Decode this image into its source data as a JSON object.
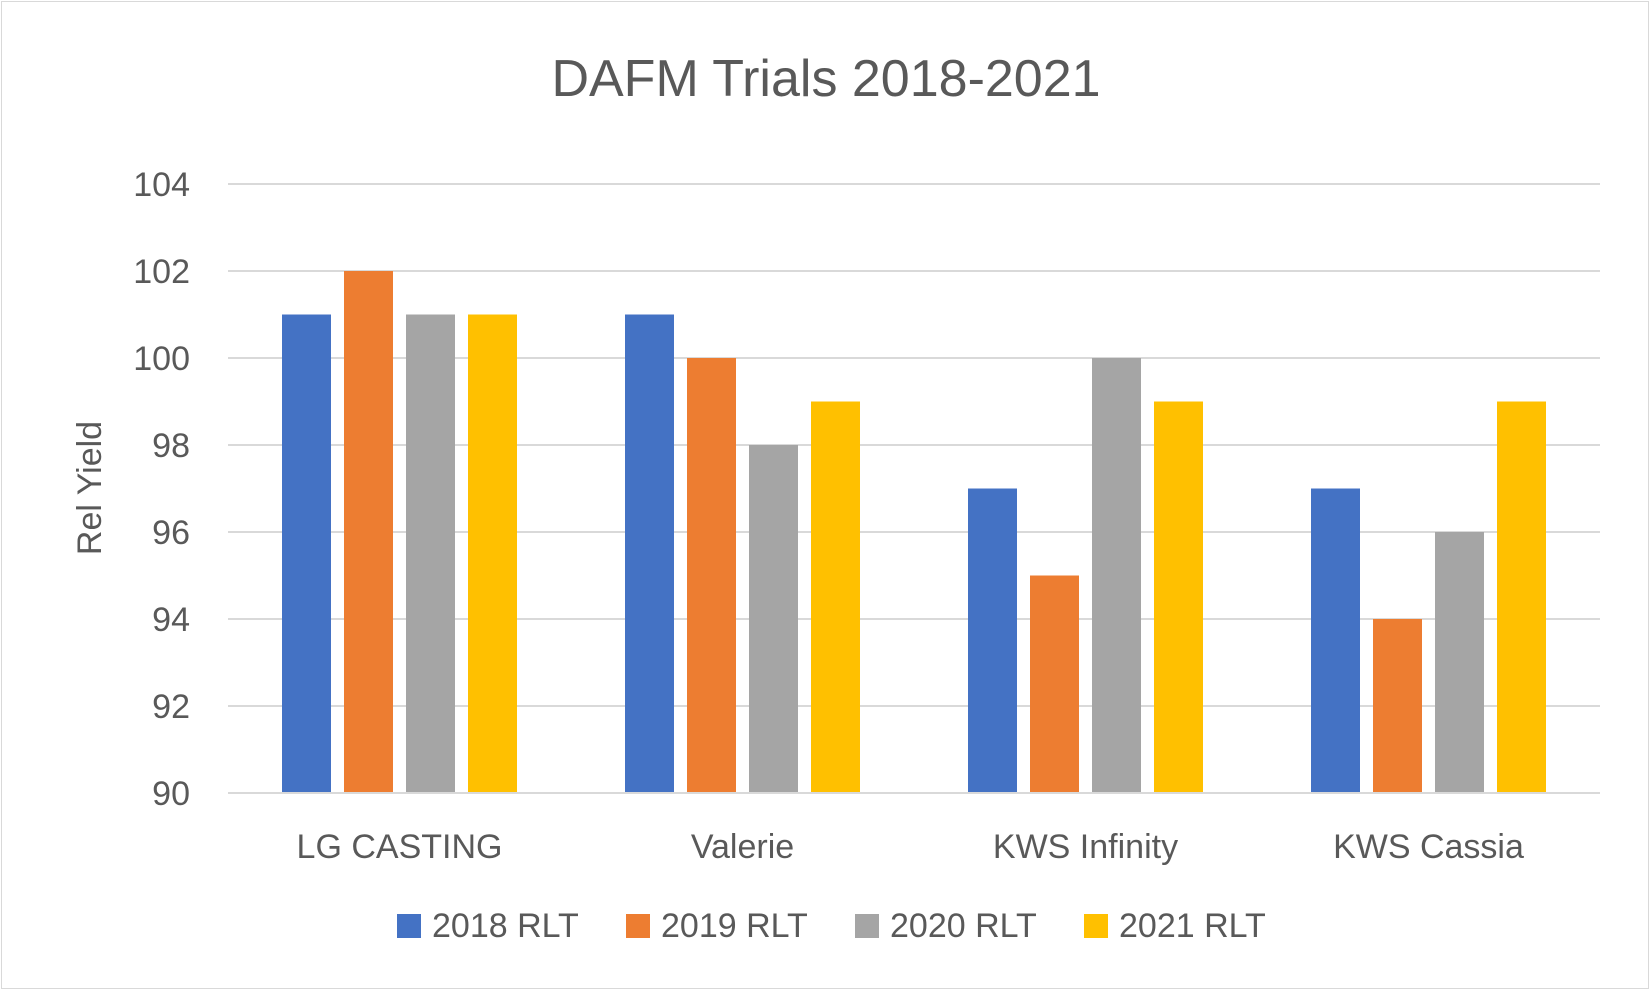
{
  "chart_data": {
    "type": "bar",
    "title": "DAFM Trials 2018-2021",
    "xlabel": "",
    "ylabel": "Rel Yield",
    "ylim": [
      90,
      104
    ],
    "yticks": [
      90,
      92,
      94,
      96,
      98,
      100,
      102,
      104
    ],
    "grid": true,
    "legend_position": "bottom",
    "categories": [
      "LG CASTING",
      "Valerie",
      "KWS Infinity",
      "KWS Cassia"
    ],
    "series": [
      {
        "name": "2018 RLT",
        "color": "#4472c4",
        "values": [
          101,
          101,
          97,
          97
        ]
      },
      {
        "name": "2019 RLT",
        "color": "#ed7d31",
        "values": [
          102,
          100,
          95,
          94
        ]
      },
      {
        "name": "2020 RLT",
        "color": "#a5a5a5",
        "values": [
          101,
          98,
          100,
          96
        ]
      },
      {
        "name": "2021 RLT",
        "color": "#ffc000",
        "values": [
          101,
          99,
          99,
          99
        ]
      }
    ]
  }
}
